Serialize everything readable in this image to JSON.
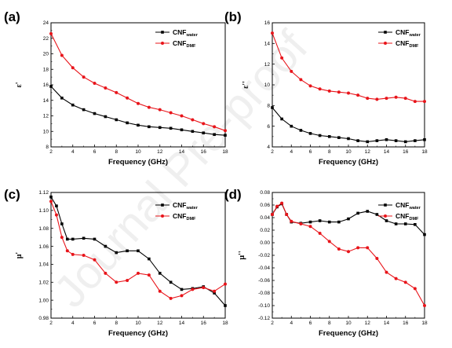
{
  "watermark": "Journal Pre-proof",
  "colors": {
    "black_series": "#000000",
    "red_series": "#e8141a"
  },
  "chart_data": [
    {
      "type": "line",
      "panel": "(a)",
      "xlabel": "Frequency (GHz)",
      "ylabel": "ε'",
      "xlim": [
        2,
        18
      ],
      "ylim": [
        8,
        24
      ],
      "xticks": [
        2,
        4,
        6,
        8,
        10,
        12,
        14,
        16,
        18
      ],
      "yticks": [
        8,
        10,
        12,
        14,
        16,
        18,
        20,
        22,
        24
      ],
      "ytick_labels": [
        "8",
        "10",
        "12",
        "14",
        "16",
        "18",
        "20",
        "22",
        "24"
      ],
      "series": [
        {
          "name_main": "CNF",
          "name_sub": "water",
          "color": "#000000",
          "marker": "square",
          "x": [
            2,
            3,
            4,
            5,
            6,
            7,
            8,
            9,
            10,
            11,
            12,
            13,
            14,
            15,
            16,
            17,
            18
          ],
          "y": [
            15.8,
            14.3,
            13.4,
            12.8,
            12.3,
            11.9,
            11.5,
            11.1,
            10.8,
            10.6,
            10.5,
            10.4,
            10.2,
            10.0,
            9.8,
            9.6,
            9.5
          ]
        },
        {
          "name_main": "CNF",
          "name_sub": "DMF",
          "color": "#e8141a",
          "marker": "circle",
          "x": [
            2,
            3,
            4,
            5,
            6,
            7,
            8,
            9,
            10,
            11,
            12,
            13,
            14,
            15,
            16,
            17,
            18
          ],
          "y": [
            22.6,
            19.8,
            18.2,
            17.0,
            16.2,
            15.6,
            15.0,
            14.3,
            13.6,
            13.1,
            12.8,
            12.4,
            12.0,
            11.5,
            11.0,
            10.6,
            10.1
          ]
        }
      ]
    },
    {
      "type": "line",
      "panel": "(b)",
      "xlabel": "Frequency (GHz)",
      "ylabel": "ε''",
      "xlim": [
        2,
        18
      ],
      "ylim": [
        4,
        16
      ],
      "xticks": [
        2,
        4,
        6,
        8,
        10,
        12,
        14,
        16,
        18
      ],
      "yticks": [
        4,
        6,
        8,
        10,
        12,
        14,
        16
      ],
      "ytick_labels": [
        "4",
        "6",
        "8",
        "10",
        "12",
        "14",
        "16"
      ],
      "series": [
        {
          "name_main": "CNF",
          "name_sub": "water",
          "color": "#000000",
          "marker": "square",
          "x": [
            2,
            3,
            4,
            5,
            6,
            7,
            8,
            9,
            10,
            11,
            12,
            13,
            14,
            15,
            16,
            17,
            18
          ],
          "y": [
            7.8,
            6.7,
            6.0,
            5.6,
            5.3,
            5.1,
            5.0,
            4.9,
            4.8,
            4.6,
            4.5,
            4.6,
            4.7,
            4.6,
            4.5,
            4.6,
            4.7
          ]
        },
        {
          "name_main": "CNF",
          "name_sub": "DMF",
          "color": "#e8141a",
          "marker": "circle",
          "x": [
            2,
            3,
            4,
            5,
            6,
            7,
            8,
            9,
            10,
            11,
            12,
            13,
            14,
            15,
            16,
            17,
            18
          ],
          "y": [
            15.0,
            12.6,
            11.3,
            10.5,
            9.9,
            9.6,
            9.4,
            9.3,
            9.2,
            9.0,
            8.7,
            8.6,
            8.7,
            8.8,
            8.7,
            8.4,
            8.4
          ]
        }
      ]
    },
    {
      "type": "line",
      "panel": "(c)",
      "xlabel": "Frequency (GHz)",
      "ylabel": "μ'",
      "xlim": [
        2,
        18
      ],
      "ylim": [
        0.98,
        1.12
      ],
      "xticks": [
        2,
        4,
        6,
        8,
        10,
        12,
        14,
        16,
        18
      ],
      "yticks": [
        0.98,
        1.0,
        1.02,
        1.04,
        1.06,
        1.08,
        1.1,
        1.12
      ],
      "ytick_labels": [
        "0.98",
        "1.00",
        "1.02",
        "1.04",
        "1.06",
        "1.08",
        "1.10",
        "1.12"
      ],
      "series": [
        {
          "name_main": "CNF",
          "name_sub": "water",
          "color": "#000000",
          "marker": "square",
          "x": [
            2,
            2.5,
            3,
            3.5,
            4,
            5,
            6,
            7,
            8,
            9,
            10,
            11,
            12,
            13,
            14,
            15,
            16,
            17,
            18
          ],
          "y": [
            1.115,
            1.105,
            1.085,
            1.068,
            1.068,
            1.069,
            1.068,
            1.06,
            1.053,
            1.055,
            1.055,
            1.046,
            1.03,
            1.02,
            1.012,
            1.013,
            1.015,
            1.008,
            0.994
          ]
        },
        {
          "name_main": "CNF",
          "name_sub": "DMF",
          "color": "#e8141a",
          "marker": "circle",
          "x": [
            2,
            2.5,
            3,
            3.5,
            4,
            5,
            6,
            7,
            8,
            9,
            10,
            11,
            12,
            13,
            14,
            15,
            16,
            17,
            18
          ],
          "y": [
            1.11,
            1.095,
            1.07,
            1.055,
            1.051,
            1.05,
            1.045,
            1.03,
            1.02,
            1.022,
            1.03,
            1.028,
            1.01,
            1.002,
            1.005,
            1.012,
            1.014,
            1.01,
            1.018
          ]
        }
      ]
    },
    {
      "type": "line",
      "panel": "(d)",
      "xlabel": "Frequency (GHz)",
      "ylabel": "μ''",
      "xlim": [
        2,
        18
      ],
      "ylim": [
        -0.12,
        0.08
      ],
      "xticks": [
        2,
        4,
        6,
        8,
        10,
        12,
        14,
        16,
        18
      ],
      "yticks": [
        -0.12,
        -0.1,
        -0.08,
        -0.06,
        -0.04,
        -0.02,
        0.0,
        0.02,
        0.04,
        0.06,
        0.08
      ],
      "ytick_labels": [
        "-0.12",
        "-0.10",
        "-0.08",
        "-0.06",
        "-0.04",
        "-0.02",
        "0.00",
        "0.02",
        "0.04",
        "0.06",
        "0.08"
      ],
      "series": [
        {
          "name_main": "CNF",
          "name_sub": "water",
          "color": "#000000",
          "marker": "square",
          "x": [
            2,
            2.5,
            3,
            3.5,
            4,
            5,
            6,
            7,
            8,
            9,
            10,
            11,
            12,
            13,
            14,
            15,
            16,
            17,
            18
          ],
          "y": [
            0.045,
            0.057,
            0.062,
            0.045,
            0.033,
            0.031,
            0.033,
            0.035,
            0.033,
            0.033,
            0.038,
            0.047,
            0.05,
            0.045,
            0.035,
            0.03,
            0.03,
            0.029,
            0.013
          ]
        },
        {
          "name_main": "CNF",
          "name_sub": "DMF",
          "color": "#e8141a",
          "marker": "circle",
          "x": [
            2,
            2.5,
            3,
            3.5,
            4,
            5,
            6,
            7,
            8,
            9,
            10,
            11,
            12,
            13,
            14,
            15,
            16,
            17,
            18
          ],
          "y": [
            0.045,
            0.058,
            0.063,
            0.045,
            0.034,
            0.03,
            0.026,
            0.015,
            0.002,
            -0.01,
            -0.014,
            -0.008,
            -0.008,
            -0.025,
            -0.047,
            -0.057,
            -0.063,
            -0.073,
            -0.1
          ]
        }
      ]
    }
  ]
}
